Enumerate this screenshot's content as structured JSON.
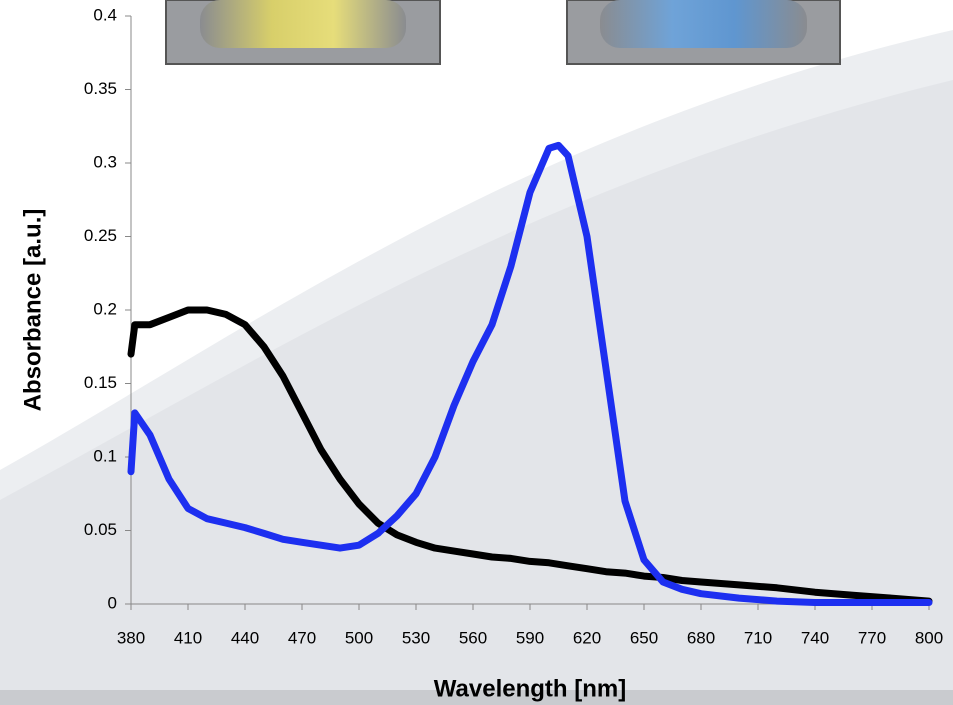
{
  "chart_data": {
    "type": "line",
    "x_label": "Wavelength [nm]",
    "y_label": "Absorbance [a.u.]",
    "x": [
      380,
      382,
      390,
      400,
      410,
      420,
      430,
      440,
      450,
      460,
      470,
      480,
      490,
      500,
      510,
      520,
      530,
      540,
      550,
      560,
      570,
      580,
      590,
      600,
      605,
      610,
      620,
      630,
      640,
      650,
      660,
      670,
      680,
      700,
      720,
      740,
      760,
      780,
      800
    ],
    "series": [
      {
        "color": "#000000",
        "values": [
          0.17,
          0.19,
          0.19,
          0.195,
          0.2,
          0.2,
          0.197,
          0.19,
          0.175,
          0.155,
          0.13,
          0.105,
          0.085,
          0.068,
          0.055,
          0.047,
          0.042,
          0.038,
          0.036,
          0.034,
          0.032,
          0.031,
          0.029,
          0.028,
          0.027,
          0.026,
          0.024,
          0.022,
          0.021,
          0.019,
          0.018,
          0.016,
          0.015,
          0.013,
          0.011,
          0.008,
          0.006,
          0.004,
          0.002
        ]
      },
      {
        "color": "#1d2ff0",
        "values": [
          0.09,
          0.13,
          0.115,
          0.085,
          0.065,
          0.058,
          0.055,
          0.052,
          0.048,
          0.044,
          0.042,
          0.04,
          0.038,
          0.04,
          0.048,
          0.06,
          0.075,
          0.1,
          0.135,
          0.165,
          0.19,
          0.23,
          0.28,
          0.31,
          0.312,
          0.305,
          0.25,
          0.16,
          0.07,
          0.03,
          0.015,
          0.01,
          0.007,
          0.004,
          0.002,
          0.001,
          0.001,
          0.001,
          0.001
        ]
      }
    ],
    "xlim": [
      380,
      800
    ],
    "xticks": [
      380,
      410,
      440,
      470,
      500,
      530,
      560,
      590,
      620,
      650,
      680,
      710,
      740,
      770,
      800
    ],
    "ylim": [
      0,
      0.4
    ],
    "yticks": [
      0,
      0.05,
      0.1,
      0.15,
      0.2,
      0.25,
      0.3,
      0.35,
      0.4
    ]
  }
}
